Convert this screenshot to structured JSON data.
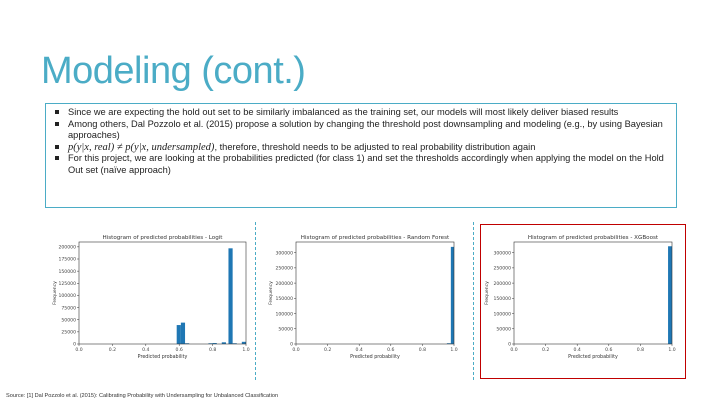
{
  "slide": {
    "title": "Modeling (cont.)",
    "bullets": [
      {
        "text": "Since we are expecting the hold out set to be similarly imbalanced as the training set, our models will most likely deliver biased results"
      },
      {
        "text": "Among others, Dal Pozzolo et al. (2015) propose a solution by changing the threshold post downsampling and modeling (e.g., by using Bayesian approaches)"
      },
      {
        "math": "p(y|x, real) ≠ p(y|x, undersampled)",
        "text": ", therefore, threshold needs to be adjusted to real probability distribution again"
      },
      {
        "text": "For this project, we are looking at the probabilities predicted (for class 1) and set the thresholds accordingly when applying the model on the Hold Out set (naïve approach)"
      }
    ],
    "footer": "Source: [1] Dal Pozzolo et al. (2015): Calibrating Probability with Undersampling for Unbalanced Classification"
  },
  "colors": {
    "accent": "#4bacc6",
    "bar": "#1f77b4",
    "highlight_border": "#c00000"
  },
  "chart_data": [
    {
      "type": "bar",
      "title": "Histogram of predicted probabilities - Logit",
      "xlabel": "Predicted probability",
      "ylabel": "Frequency",
      "xlim": [
        0,
        1
      ],
      "ylim": [
        0,
        210000
      ],
      "xticks": [
        0.0,
        0.2,
        0.4,
        0.6,
        0.8,
        1.0
      ],
      "xtick_labels": [
        "0.0",
        "0.2",
        "0.4",
        "0.6",
        "0.8",
        "1.0"
      ],
      "yticks": [
        0,
        25000,
        50000,
        75000,
        100000,
        125000,
        150000,
        175000,
        200000
      ],
      "ytick_labels": [
        "0",
        "25000",
        "50000",
        "75000",
        "100000",
        "125000",
        "150000",
        "175000",
        "200000"
      ],
      "bins": [
        {
          "x0": 0.585,
          "x1": 0.61,
          "value": 39000
        },
        {
          "x0": 0.61,
          "x1": 0.635,
          "value": 44000
        },
        {
          "x0": 0.635,
          "x1": 0.66,
          "value": 1500
        },
        {
          "x0": 0.775,
          "x1": 0.8,
          "value": 1500
        },
        {
          "x0": 0.8,
          "x1": 0.825,
          "value": 2000
        },
        {
          "x0": 0.855,
          "x1": 0.88,
          "value": 3500
        },
        {
          "x0": 0.895,
          "x1": 0.92,
          "value": 197000
        },
        {
          "x0": 0.92,
          "x1": 0.945,
          "value": 1500
        },
        {
          "x0": 0.975,
          "x1": 1.0,
          "value": 4500
        }
      ]
    },
    {
      "type": "bar",
      "title": "Histogram of predicted probabilities - Random Forest",
      "xlabel": "Predicted probability",
      "ylabel": "Frequency",
      "xlim": [
        0,
        1
      ],
      "ylim": [
        0,
        335000
      ],
      "xticks": [
        0.0,
        0.2,
        0.4,
        0.6,
        0.8,
        1.0
      ],
      "xtick_labels": [
        "0.0",
        "0.2",
        "0.4",
        "0.6",
        "0.8",
        "1.0"
      ],
      "yticks": [
        0,
        50000,
        100000,
        150000,
        200000,
        250000,
        300000
      ],
      "ytick_labels": [
        "0",
        "50000",
        "100000",
        "150000",
        "200000",
        "250000",
        "300000"
      ],
      "bins": [
        {
          "x0": 0.955,
          "x1": 0.98,
          "value": 2500
        },
        {
          "x0": 0.98,
          "x1": 1.0,
          "value": 319000
        }
      ]
    },
    {
      "type": "bar",
      "title": "Histogram of predicted probabilities - XGBoost",
      "xlabel": "Predicted probability",
      "ylabel": "Frequency",
      "xlim": [
        0,
        1
      ],
      "ylim": [
        0,
        335000
      ],
      "xticks": [
        0.0,
        0.2,
        0.4,
        0.6,
        0.8,
        1.0
      ],
      "xtick_labels": [
        "0.0",
        "0.2",
        "0.4",
        "0.6",
        "0.8",
        "1.0"
      ],
      "yticks": [
        0,
        50000,
        100000,
        150000,
        200000,
        250000,
        300000
      ],
      "ytick_labels": [
        "0",
        "50000",
        "100000",
        "150000",
        "200000",
        "250000",
        "300000"
      ],
      "bins": [
        {
          "x0": 0.975,
          "x1": 1.0,
          "value": 321000
        }
      ]
    }
  ]
}
